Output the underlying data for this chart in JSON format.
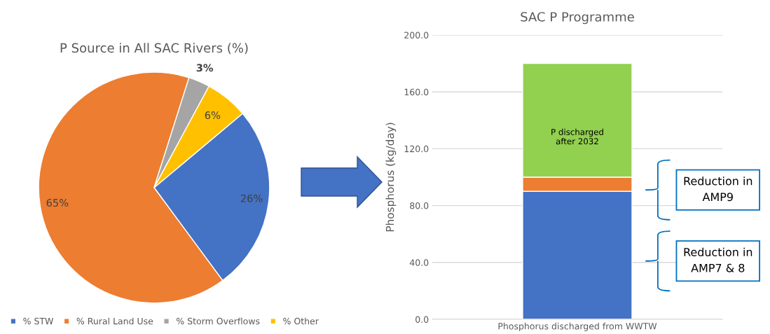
{
  "chart_data": [
    {
      "type": "pie",
      "title": "P Source in All SAC Rivers (%)",
      "categories": [
        "% STW",
        "% Rural Land Use",
        "% Storm Overflows",
        "% Other"
      ],
      "values": [
        26,
        65,
        3,
        6
      ],
      "colors": [
        "#4472c4",
        "#ed7d31",
        "#a5a5a5",
        "#ffc000"
      ],
      "value_labels": [
        "26%",
        "65%",
        "3%",
        "6%"
      ],
      "legend": "bottom"
    },
    {
      "type": "bar",
      "title": "SAC P Programme",
      "ylabel": "Phosphorus (kg/day)",
      "categories": [
        "Phosphorus discharged from WWTW"
      ],
      "stacked": true,
      "series": [
        {
          "color": "#4472c4",
          "values": [
            90
          ]
        },
        {
          "color": "#ed7d31",
          "values": [
            10
          ]
        },
        {
          "color": "#92d050",
          "values": [
            80
          ]
        }
      ],
      "ylim": [
        0,
        200
      ],
      "yticks": [
        {
          "value": 0,
          "label": "0.0"
        },
        {
          "value": 40,
          "label": "40.0"
        },
        {
          "value": 80,
          "label": "80.0"
        },
        {
          "value": 120,
          "label": "120.0"
        },
        {
          "value": 160,
          "label": "160.0"
        },
        {
          "value": 200,
          "label": "200.0"
        }
      ],
      "grid": "y",
      "annotations": [
        "P discharged\nafter 2032",
        "Reduction in\nAMP9",
        "Reduction in\nAMP7 & 8"
      ]
    }
  ]
}
